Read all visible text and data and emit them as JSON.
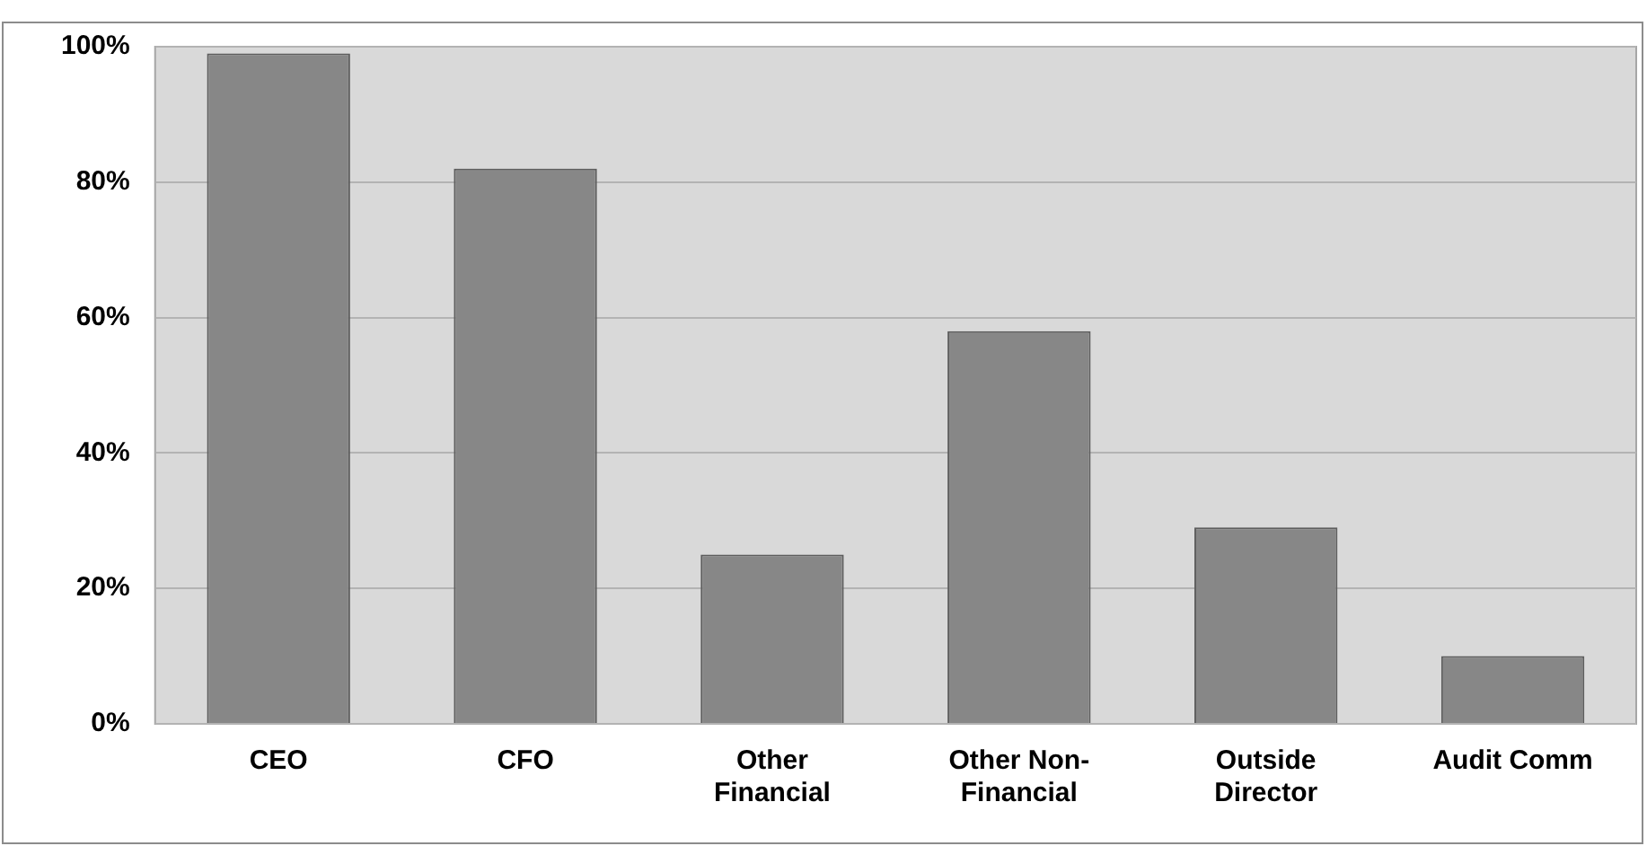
{
  "chart_data": {
    "type": "bar",
    "categories": [
      "CEO",
      "CFO",
      "Other Financial",
      "Other Non-Financial",
      "Outside Director",
      "Audit Comm"
    ],
    "values": [
      99,
      82,
      25,
      58,
      29,
      10
    ],
    "color": "#878787",
    "ylim": [
      0,
      100
    ],
    "yticks": [
      {
        "value": 0,
        "label": "0%"
      },
      {
        "value": 20,
        "label": "20%"
      },
      {
        "value": 40,
        "label": "40%"
      },
      {
        "value": 60,
        "label": "60%"
      },
      {
        "value": 80,
        "label": "80%"
      },
      {
        "value": 100,
        "label": "100%"
      }
    ],
    "grid": "y"
  }
}
